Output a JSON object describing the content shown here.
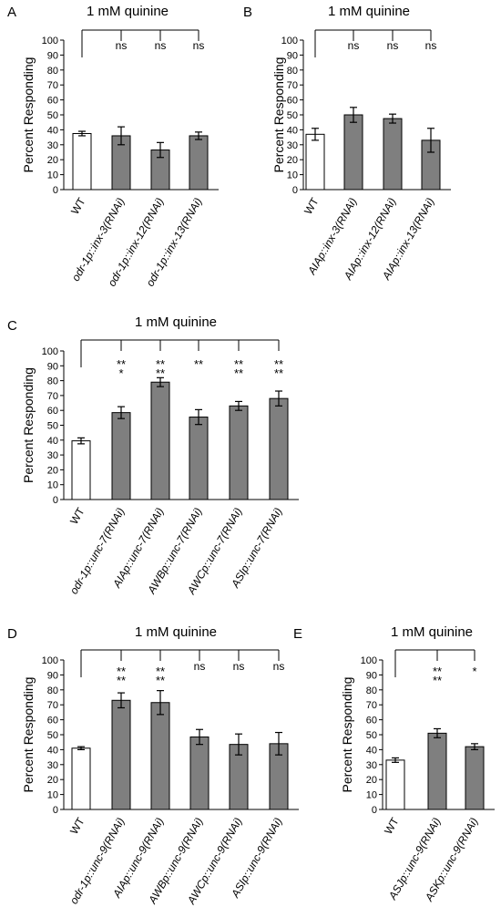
{
  "chart_data": [
    {
      "panel": "A",
      "type": "bar",
      "title": "1 mM quinine",
      "ylabel": "Percent Responding",
      "ylim": [
        0,
        100
      ],
      "yticks": [
        0,
        10,
        20,
        30,
        40,
        50,
        60,
        70,
        80,
        90,
        100
      ],
      "categories": [
        "WT",
        "odr-1p::inx-3(RNAi)",
        "odr-1p::inx-12(RNAi)",
        "odr-1p::inx-13(RNAi)"
      ],
      "values": [
        37.5,
        36,
        26.5,
        36
      ],
      "errors": [
        1.5,
        6,
        5,
        2.5
      ],
      "significance": [
        "",
        "ns",
        "ns",
        "ns"
      ],
      "colors": {
        "control": "#ffffff",
        "treated": "#7f7f7f"
      }
    },
    {
      "panel": "B",
      "type": "bar",
      "title": "1 mM quinine",
      "ylabel": "Percent Responding",
      "ylim": [
        0,
        100
      ],
      "yticks": [
        0,
        10,
        20,
        30,
        40,
        50,
        60,
        70,
        80,
        90,
        100
      ],
      "categories": [
        "WT",
        "AIAp::inx-3(RNAi)",
        "AIAp::inx-12(RNAi)",
        "AIAp::inx-13(RNAi)"
      ],
      "values": [
        37,
        50,
        47.5,
        33
      ],
      "errors": [
        4,
        5,
        3,
        8
      ],
      "significance": [
        "",
        "ns",
        "ns",
        "ns"
      ],
      "colors": {
        "control": "#ffffff",
        "treated": "#7f7f7f"
      }
    },
    {
      "panel": "C",
      "type": "bar",
      "title": "1 mM quinine",
      "ylabel": "Percent Responding",
      "ylim": [
        0,
        100
      ],
      "yticks": [
        0,
        10,
        20,
        30,
        40,
        50,
        60,
        70,
        80,
        90,
        100
      ],
      "categories": [
        "WT",
        "odr-1p::unc-7(RNAi)",
        "AIAp::unc-7(RNAi)",
        "AWBp::unc-7(RNAi)",
        "AWCp::unc-7(RNAi)",
        "ASIp::unc-7(RNAi)"
      ],
      "values": [
        39.5,
        58.5,
        79,
        55.5,
        63,
        68
      ],
      "errors": [
        2,
        4,
        3,
        5,
        3,
        5
      ],
      "significance": [
        [],
        [
          "**",
          "*"
        ],
        [
          "**",
          "**"
        ],
        [
          "**"
        ],
        [
          "**",
          "**"
        ],
        [
          "**",
          "**"
        ]
      ],
      "colors": {
        "control": "#ffffff",
        "treated": "#7f7f7f"
      }
    },
    {
      "panel": "D",
      "type": "bar",
      "title": "1 mM quinine",
      "ylabel": "Percent Responding",
      "ylim": [
        0,
        100
      ],
      "yticks": [
        0,
        10,
        20,
        30,
        40,
        50,
        60,
        70,
        80,
        90,
        100
      ],
      "categories": [
        "WT",
        "odr-1p::unc-9(RNAi)",
        "AIAp::unc-9(RNAi)",
        "AWBp::unc-9(RNAi)",
        "AWCp::unc-9(RNAi)",
        "ASIp::unc-9(RNAi)"
      ],
      "values": [
        41,
        73,
        71.5,
        48.5,
        43.5,
        44
      ],
      "errors": [
        1,
        5,
        8,
        5,
        7,
        7.5
      ],
      "significance": [
        [],
        [
          "**",
          "**"
        ],
        [
          "**",
          "**"
        ],
        [
          "ns"
        ],
        [
          "ns"
        ],
        [
          "ns"
        ]
      ],
      "colors": {
        "control": "#ffffff",
        "treated": "#7f7f7f"
      }
    },
    {
      "panel": "E",
      "type": "bar",
      "title": "1 mM quinine",
      "ylabel": "Percent Responding",
      "ylim": [
        0,
        100
      ],
      "yticks": [
        0,
        10,
        20,
        30,
        40,
        50,
        60,
        70,
        80,
        90,
        100
      ],
      "categories": [
        "WT",
        "ASJp::unc-9(RNAi)",
        "ASKp::unc-9(RNAi)"
      ],
      "values": [
        33,
        51,
        42
      ],
      "errors": [
        1.5,
        3,
        2
      ],
      "significance": [
        [],
        [
          "**",
          "**"
        ],
        [
          "*"
        ]
      ],
      "colors": {
        "control": "#ffffff",
        "treated": "#7f7f7f"
      }
    }
  ]
}
